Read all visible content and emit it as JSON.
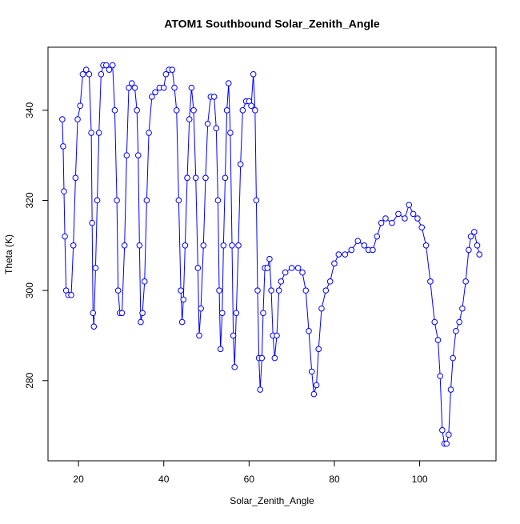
{
  "chart_data": {
    "type": "scatter",
    "title": "ATOM1 Southbound Solar_Zenith_Angle",
    "x_label": "Solar_Zenith_Angle",
    "y_label": "Theta (K)",
    "xlim": [
      12.85,
      117.9
    ],
    "ylim": [
      262.2,
      354.0
    ],
    "xticks": [
      20,
      40,
      60,
      80,
      100
    ],
    "yticks": [
      280,
      300,
      320,
      340
    ],
    "connect": true,
    "x": [
      16.2,
      16.4,
      16.6,
      16.8,
      17.1,
      17.6,
      18.3,
      18.8,
      19.3,
      19.8,
      20.4,
      21,
      21.8,
      22.5,
      23,
      23.2,
      23.4,
      23.6,
      24,
      24.4,
      24.8,
      25.3,
      25.8,
      26.5,
      27.2,
      28,
      28.5,
      29,
      29.3,
      29.7,
      30.2,
      30.8,
      31.3,
      31.8,
      32.5,
      33.2,
      33.7,
      34,
      34.3,
      34.6,
      35,
      35.5,
      36,
      36.5,
      37.2,
      38,
      39,
      40,
      40.5,
      41.2,
      42,
      42.5,
      43,
      43.5,
      44,
      44.3,
      44.6,
      45,
      45.5,
      46,
      46.5,
      47,
      47.5,
      48,
      48.3,
      48.7,
      49.3,
      49.8,
      50.3,
      51,
      51.8,
      52.3,
      52.7,
      53,
      53.3,
      53.7,
      54,
      54.4,
      54.8,
      55.2,
      55.6,
      56,
      56.3,
      56.6,
      57,
      57.5,
      58,
      58.5,
      59.3,
      60,
      60.5,
      61,
      61.4,
      61.7,
      62,
      62.3,
      62.6,
      63,
      63.3,
      63.7,
      64.3,
      64.8,
      65.2,
      65.6,
      66,
      66.5,
      67,
      67.5,
      68.5,
      70,
      71.5,
      72.5,
      73.3,
      74,
      74.7,
      75.2,
      75.8,
      76.3,
      77,
      78,
      79,
      80,
      81,
      82.5,
      84,
      85.5,
      87,
      88,
      89,
      90,
      91,
      92,
      93.5,
      95,
      96.5,
      97.5,
      98.5,
      99.5,
      100.5,
      101.5,
      102.5,
      103.5,
      104.3,
      104.8,
      105.3,
      105.8,
      106.3,
      106.8,
      107.3,
      107.8,
      108.5,
      109.3,
      110,
      110.8,
      111.5,
      112,
      112.8,
      113.5,
      114
    ],
    "series": [
      {
        "color": "#0000ff",
        "values": [
          338,
          332,
          322,
          312,
          300,
          299,
          299,
          310,
          325,
          338,
          341,
          348,
          349,
          348,
          335,
          315,
          295,
          292,
          305,
          320,
          335,
          348,
          350,
          350,
          349,
          350,
          340,
          320,
          300,
          295,
          295,
          310,
          330,
          345,
          346,
          345,
          340,
          330,
          310,
          293,
          295,
          302,
          320,
          335,
          343,
          344,
          345,
          345,
          348,
          349,
          349,
          345,
          340,
          320,
          300,
          293,
          298,
          310,
          325,
          338,
          345,
          340,
          325,
          305,
          290,
          296,
          310,
          325,
          337,
          343,
          343,
          336,
          320,
          300,
          287,
          295,
          310,
          325,
          340,
          346,
          335,
          310,
          290,
          283,
          295,
          310,
          328,
          340,
          342,
          342,
          341,
          348,
          340,
          320,
          300,
          285,
          278,
          285,
          295,
          305,
          305,
          307,
          300,
          290,
          285,
          290,
          300,
          302,
          304,
          305,
          305,
          304,
          300,
          291,
          282,
          277,
          279,
          287,
          296,
          300,
          302,
          306,
          308,
          308,
          309,
          311,
          310,
          309,
          309,
          312,
          315,
          316,
          315,
          317,
          316,
          319,
          317,
          316,
          314,
          310,
          302,
          293,
          289,
          281,
          269,
          266,
          266,
          268,
          278,
          285,
          291,
          293,
          296,
          302,
          309,
          312,
          313,
          310,
          308
        ]
      }
    ]
  }
}
